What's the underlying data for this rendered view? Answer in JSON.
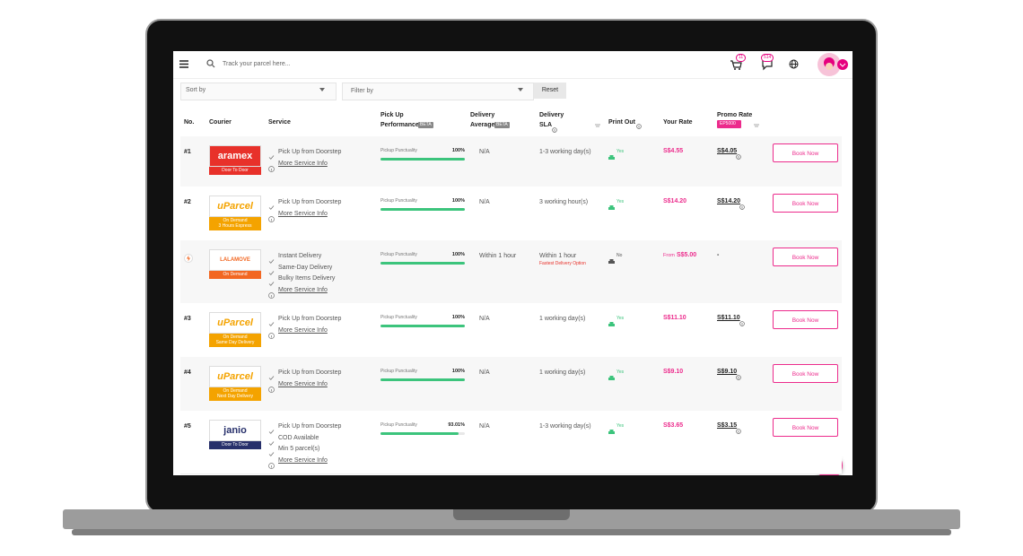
{
  "topbar": {
    "search_placeholder": "Track your parcel here...",
    "cart_badge": "11",
    "chat_badge": "514"
  },
  "filters": {
    "sort": "Sort by",
    "filter": "Filter by",
    "reset": "Reset"
  },
  "table": {
    "headers": {
      "no": "No.",
      "courier": "Courier",
      "service": "Service",
      "pickup": [
        "Pick Up",
        "Performance"
      ],
      "average": [
        "Delivery",
        "Average"
      ],
      "sla": [
        "Delivery",
        "SLA"
      ],
      "print": "Print Out",
      "rate": "Your Rate",
      "promo": "Promo Rate"
    },
    "beta": "BETA",
    "promo_code": "EP5000",
    "rows": [
      {
        "no": "#1",
        "logo": "aramex",
        "logo_color": "#e8312a",
        "tag": [
          "Door To Door"
        ],
        "tag_color": "#e8312a",
        "services": [
          "Pick Up from Doorstep"
        ],
        "more": "More Service Info",
        "pickup": {
          "label": "Pickup Punctuality",
          "value": 100,
          "value_label": "100%"
        },
        "average": "N/A",
        "sla": "1-3 working day(s)",
        "print_out": "Yes",
        "print_color": "#3cc47c",
        "rate": "S$4.55",
        "promo": "S$4.05",
        "action": "Book Now"
      },
      {
        "no": "#2",
        "logo": "uParcel",
        "logo_color": "#f4a300",
        "tag": [
          "On Demand",
          "3 Hours Express"
        ],
        "tag_color": "#f4a300",
        "services": [
          "Pick Up from Doorstep"
        ],
        "more": "More Service Info",
        "pickup": {
          "label": "Pickup Punctuality",
          "value": 100,
          "value_label": "100%"
        },
        "average": "N/A",
        "sla": "3 working hour(s)",
        "print_out": "Yes",
        "print_color": "#3cc47c",
        "rate": "S$14.20",
        "promo": "S$14.20",
        "action": "Book Now"
      },
      {
        "logo": "LALAMOVE",
        "logo_color": "#f26722",
        "tag": [
          "On Demand"
        ],
        "tag_color": "#f26722",
        "services": [
          "Instant Delivery",
          "Same-Day Delivery",
          "Bulky Items Delivery"
        ],
        "more": "More Service Info",
        "pickup": {
          "label": "Pickup Punctuality",
          "value": 100,
          "value_label": "100%"
        },
        "average": "Within 1 hour",
        "sla": "Within 1 hour",
        "sla_note": "Fastest Delivery Option",
        "print_out": "No",
        "print_color": "#555",
        "rate_prefix": "From",
        "rate": "S$5.00",
        "promo": "-",
        "action": "Book Now"
      },
      {
        "no": "#3",
        "logo": "uParcel",
        "logo_color": "#f4a300",
        "tag": [
          "On Demand",
          "Same Day Delivery"
        ],
        "tag_color": "#f4a300",
        "services": [
          "Pick Up from Doorstep"
        ],
        "more": "More Service Info",
        "pickup": {
          "label": "Pickup Punctuality",
          "value": 100,
          "value_label": "100%"
        },
        "average": "N/A",
        "sla": "1 working day(s)",
        "print_out": "Yes",
        "print_color": "#3cc47c",
        "rate": "S$11.10",
        "promo": "S$11.10",
        "action": "Book Now"
      },
      {
        "no": "#4",
        "logo": "uParcel",
        "logo_color": "#f4a300",
        "tag": [
          "On Demand",
          "Next Day Delivery"
        ],
        "tag_color": "#f4a300",
        "services": [
          "Pick Up from Doorstep"
        ],
        "more": "More Service Info",
        "pickup": {
          "label": "Pickup Punctuality",
          "value": 100,
          "value_label": "100%"
        },
        "average": "N/A",
        "sla": "1 working day(s)",
        "print_out": "Yes",
        "print_color": "#3cc47c",
        "rate": "S$9.10",
        "promo": "S$9.10",
        "action": "Book Now"
      },
      {
        "no": "#5",
        "logo": "janio",
        "logo_color": "#27306b",
        "tag": [
          "Door To Door"
        ],
        "tag_color": "#27306b",
        "services": [
          "Pick Up from Doorstep",
          "COD Available",
          "Min 5 parcel(s)"
        ],
        "more": "More Service Info",
        "pickup": {
          "label": "Pickup Punctuality",
          "value": 93.01,
          "value_label": "93.01%"
        },
        "average": "N/A",
        "sla": "1-3 working day(s)",
        "print_out": "Yes",
        "print_color": "#3cc47c",
        "rate": "S$3.65",
        "promo": "S$3.15",
        "action": "Book Now"
      }
    ]
  }
}
